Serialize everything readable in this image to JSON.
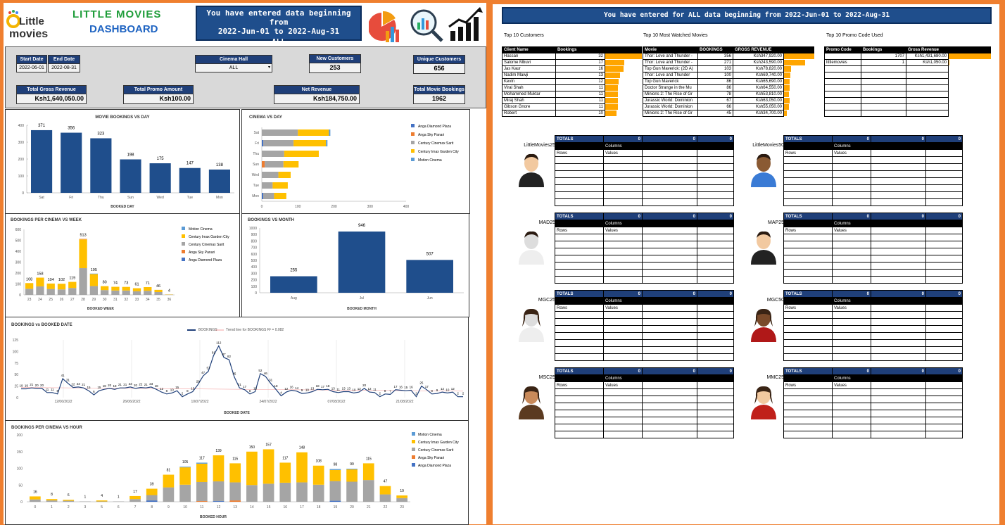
{
  "logo": {
    "word1": "Little",
    "word2": "movies",
    "c_letter": "C"
  },
  "header": {
    "title_line1": "LITTLE MOVIES",
    "title_line2": "DASHBOARD",
    "banner": [
      "You have entered data beginning from",
      "2022-Jun-01 to 2022-Aug-31",
      "ALL"
    ],
    "right_banner": "You have entered for ALL data beginning from 2022-Jun-01 to 2022-Aug-31"
  },
  "filters": {
    "start_date_label": "Start Date",
    "start_date": "2022-06-01",
    "end_date_label": "End Date",
    "end_date": "2022-08-31",
    "cinema_label": "Cinema Hall",
    "cinema_value": "ALL",
    "new_customers_label": "New Customers",
    "new_customers": "253",
    "unique_customers_label": "Unique Customers",
    "unique_customers": "656",
    "gross_label": "Total Gross Revenue",
    "gross": "Ksh1,640,050.00",
    "promo_label": "Total Promo Amount",
    "promo": "Ksh100.00",
    "net_label": "Net Revenue",
    "net": "Ksh184,750.00",
    "bookings_label": "Total Movie Bookings",
    "bookings": "1962"
  },
  "charts": {
    "movie_day": {
      "title": "MOVIE BOOKINGS VS DAY",
      "xlabel": "BOOKED DAY"
    },
    "cinema_day": {
      "title": "CINEMA VS DAY"
    },
    "cinema_week": {
      "title": "BOOKINGS PER CINEMA VS WEEK",
      "xlabel": "BOOKED WEEK"
    },
    "month": {
      "title": "BOOKINGS VS MONTH",
      "xlabel": "BOOKED MONTH"
    },
    "date": {
      "title": "BOOKINGS vs BOOKED DATE",
      "xlabel": "BOOKED DATE",
      "legend1": "BOOKINGS",
      "legend2": "Trend line for BOOKINGS R² = 0.082"
    },
    "hour": {
      "title": "BOOKINGS PER CINEMA VS HOUR",
      "xlabel": "BOOKED HOUR"
    }
  },
  "chart_data": [
    {
      "type": "bar",
      "title": "MOVIE BOOKINGS VS DAY",
      "xlabel": "BOOKED DAY",
      "categories": [
        "Sat",
        "Fri",
        "Thu",
        "Sun",
        "Wed",
        "Tue",
        "Mon"
      ],
      "values": [
        371,
        356,
        323,
        198,
        175,
        147,
        138
      ],
      "ylim": [
        0,
        400
      ],
      "yticks": [
        0,
        100,
        200,
        300,
        400
      ],
      "color": "#1f4e8c"
    },
    {
      "type": "bar",
      "orientation": "horizontal",
      "stacked": true,
      "title": "CINEMA VS DAY",
      "categories": [
        "Sat",
        "Fri",
        "Thu",
        "Sun",
        "Wed",
        "Tue",
        "Mon"
      ],
      "series": [
        {
          "name": "Anga Diamond Plaza",
          "color": "#4472c4",
          "values": [
            0,
            4,
            0,
            0,
            0,
            0,
            4
          ]
        },
        {
          "name": "Anga Sky Panari",
          "color": "#ed7d31",
          "values": [
            0,
            0,
            0,
            8,
            0,
            0,
            0
          ]
        },
        {
          "name": "Century Cinemax Sarit",
          "color": "#a5a5a5",
          "values": [
            100,
            84,
            62,
            52,
            46,
            30,
            30
          ]
        },
        {
          "name": "Century Imax Garden City",
          "color": "#ffc000",
          "values": [
            86,
            90,
            96,
            42,
            34,
            42,
            34
          ]
        },
        {
          "name": "Motion Cinema",
          "color": "#5b9bd5",
          "values": [
            4,
            4,
            0,
            0,
            0,
            0,
            0
          ]
        }
      ],
      "xlim": [
        0,
        400
      ],
      "xticks": [
        0,
        100,
        200,
        300,
        400
      ]
    },
    {
      "type": "bar",
      "stacked": true,
      "title": "BOOKINGS PER CINEMA VS WEEK",
      "xlabel": "BOOKED WEEK",
      "categories": [
        "23",
        "24",
        "25",
        "26",
        "27",
        "28",
        "29",
        "30",
        "31",
        "32",
        "33",
        "34",
        "35",
        "36"
      ],
      "totals": [
        108,
        158,
        104,
        102,
        119,
        513,
        195,
        80,
        74,
        73,
        61,
        71,
        46,
        4
      ],
      "series": [
        {
          "name": "Motion Cinema",
          "color": "#5b9bd5",
          "values": [
            0,
            0,
            0,
            0,
            0,
            0,
            4,
            0,
            0,
            0,
            0,
            0,
            0,
            0
          ]
        },
        {
          "name": "Century Imax Garden City",
          "color": "#ffc000",
          "values": [
            52,
            80,
            50,
            52,
            56,
            263,
            110,
            36,
            34,
            33,
            28,
            34,
            20,
            2
          ]
        },
        {
          "name": "Century Cinemax Sarit",
          "color": "#a5a5a5",
          "values": [
            56,
            78,
            54,
            50,
            63,
            245,
            81,
            44,
            40,
            40,
            33,
            37,
            26,
            2
          ]
        },
        {
          "name": "Anga Sky Panari",
          "color": "#ed7d31",
          "values": [
            0,
            0,
            0,
            0,
            0,
            5,
            0,
            0,
            0,
            0,
            0,
            0,
            0,
            0
          ]
        },
        {
          "name": "Anga Diamond Plaza",
          "color": "#4472c4",
          "values": [
            0,
            0,
            0,
            0,
            0,
            0,
            0,
            0,
            0,
            0,
            0,
            0,
            0,
            0
          ]
        }
      ],
      "ylim": [
        0,
        600
      ],
      "yticks": [
        0,
        100,
        200,
        300,
        400,
        500,
        600
      ]
    },
    {
      "type": "bar",
      "title": "BOOKINGS VS MONTH",
      "xlabel": "BOOKED MONTH",
      "categories": [
        "Aug",
        "Jul",
        "Jun"
      ],
      "values": [
        255,
        946,
        507
      ],
      "ylim": [
        0,
        1000
      ],
      "yticks": [
        0,
        100,
        200,
        300,
        400,
        500,
        600,
        700,
        800,
        900,
        1000
      ],
      "color": "#1f4e8c"
    },
    {
      "type": "line",
      "title": "BOOKINGS vs BOOKED DATE",
      "xlabel": "BOOKED DATE",
      "series_name": "BOOKINGS",
      "values": [
        19,
        19,
        21,
        20,
        20,
        11,
        11,
        8,
        41,
        31,
        22,
        23,
        21,
        15,
        6,
        15,
        18,
        20,
        18,
        21,
        21,
        23,
        20,
        22,
        21,
        23,
        18,
        12,
        8,
        10,
        15,
        2,
        8,
        13,
        28,
        47,
        57,
        91,
        112,
        87,
        82,
        45,
        21,
        17,
        8,
        13,
        52,
        46,
        31,
        18,
        4,
        12,
        16,
        14,
        9,
        10,
        13,
        18,
        17,
        18,
        13,
        11,
        13,
        13,
        10,
        12,
        20,
        12,
        11,
        2,
        8,
        7,
        17,
        16,
        15,
        16,
        2,
        25,
        17,
        8,
        9,
        12,
        10,
        12,
        2,
        2
      ],
      "xtick_labels": [
        "12/06/2022",
        "26/06/2022",
        "10/07/2022",
        "24/07/2022",
        "07/08/2022",
        "21/08/2022"
      ],
      "ylim": [
        0,
        125
      ],
      "yticks": [
        0,
        25,
        50,
        75,
        100,
        125
      ]
    },
    {
      "type": "bar",
      "stacked": true,
      "title": "BOOKINGS PER CINEMA VS HOUR",
      "xlabel": "BOOKED HOUR",
      "categories": [
        "0",
        "1",
        "2",
        "3",
        "5",
        "6",
        "7",
        "8",
        "9",
        "10",
        "11",
        "12",
        "13",
        "14",
        "15",
        "16",
        "17",
        "18",
        "19",
        "20",
        "21",
        "22",
        "23"
      ],
      "totals": [
        16,
        8,
        6,
        1,
        4,
        1,
        17,
        39,
        81,
        105,
        117,
        139,
        115,
        150,
        157,
        117,
        148,
        108,
        98,
        99,
        115,
        47,
        19
      ],
      "series": [
        {
          "name": "Motion Cinema",
          "color": "#5b9bd5",
          "values": [
            0,
            0,
            0,
            0,
            0,
            0,
            0,
            0,
            0,
            2,
            3,
            0,
            0,
            0,
            0,
            0,
            0,
            0,
            3,
            2,
            0,
            0,
            0
          ]
        },
        {
          "name": "Century Imax Garden City",
          "color": "#ffc000",
          "values": [
            9,
            4,
            3,
            0,
            3,
            0,
            9,
            19,
            38,
            52,
            55,
            78,
            57,
            100,
            103,
            60,
            90,
            57,
            33,
            37,
            50,
            25,
            8
          ]
        },
        {
          "name": "Century Cinemax Sarit",
          "color": "#a5a5a5",
          "values": [
            7,
            4,
            3,
            1,
            1,
            1,
            8,
            16,
            43,
            51,
            57,
            59,
            54,
            50,
            54,
            57,
            58,
            51,
            59,
            60,
            65,
            22,
            11
          ]
        },
        {
          "name": "Anga Sky Panari",
          "color": "#ed7d31",
          "values": [
            0,
            0,
            0,
            0,
            0,
            0,
            0,
            0,
            0,
            0,
            2,
            0,
            4,
            0,
            0,
            0,
            0,
            0,
            0,
            0,
            0,
            0,
            0
          ]
        },
        {
          "name": "Anga Diamond Plaza",
          "color": "#4472c4",
          "values": [
            0,
            0,
            0,
            0,
            0,
            0,
            0,
            4,
            0,
            0,
            0,
            2,
            0,
            0,
            0,
            0,
            0,
            0,
            3,
            0,
            0,
            0,
            0
          ]
        }
      ],
      "ylim": [
        0,
        200
      ],
      "yticks": [
        0,
        50,
        100,
        150,
        200
      ]
    }
  ],
  "top_customers": {
    "title": "Top 10 Customers",
    "col1": "Client Name",
    "col2": "Bookings",
    "rows": [
      [
        "Hassan",
        "32"
      ],
      [
        "Salome Mbuvi",
        "17"
      ],
      [
        "Jas Kaur",
        "16"
      ],
      [
        "Nadim Mawji",
        "13"
      ],
      [
        "Kevin",
        "12"
      ],
      [
        "Viral Shah",
        "11"
      ],
      [
        "Mohammed Muktar",
        "11"
      ],
      [
        "Miraj Shah",
        "11"
      ],
      [
        "Gibson Gnore",
        "11"
      ],
      [
        "Robert",
        "10"
      ]
    ],
    "bar_values": [
      32,
      17,
      16,
      13,
      12,
      11,
      11,
      11,
      11,
      10
    ]
  },
  "top_movies": {
    "title": "Top 10 Most Watched Movies",
    "col1": "Movie",
    "col2": "BOOKINGS",
    "col3": "GROSS REVENUE",
    "rows": [
      [
        "Thor: Love and Thunder -",
        "356",
        "Ksh347,920.00"
      ],
      [
        "Thor: Love and Thunder -",
        "271",
        "Ksh243,590.00"
      ],
      [
        "Top Gun Maverick: (2D A)",
        "103",
        "Ksh78,820.00"
      ],
      [
        "Thor: Love and Thunder",
        "100",
        "Ksh69,740.00"
      ],
      [
        "Top Gun Maverick",
        "86",
        "Ksh65,690.00"
      ],
      [
        "Doctor Strange in the Mu",
        "86",
        "Ksh64,550.00"
      ],
      [
        "Minions 2: The Rise of Gr",
        "78",
        "Ksh53,810.00"
      ],
      [
        "Jurassic World: Dominion",
        "67",
        "Ksh63,050.00"
      ],
      [
        "Jurassic World: Dominion",
        "66",
        "Ksh55,050.00"
      ],
      [
        "Minions 2: The Rise of Gr",
        "45",
        "Ksh34,700.00"
      ]
    ],
    "bar_values": [
      347920,
      243590,
      78820,
      69740,
      65690,
      64550,
      53810,
      63050,
      55050,
      34700
    ]
  },
  "top_promo": {
    "title": "Top 10 Promo Code Used",
    "col1": "Promo Code",
    "col2": "Bookings",
    "col3": "Gross Revenue",
    "rows": [
      [
        "",
        "1707",
        "Ksh1,431,680.00"
      ],
      [
        "littlemovies",
        "1",
        "Ksh1,050.00"
      ],
      [
        "",
        "",
        ""
      ],
      [
        "",
        "",
        ""
      ],
      [
        "",
        "",
        ""
      ],
      [
        "",
        "",
        ""
      ],
      [
        "",
        "",
        ""
      ],
      [
        "",
        "",
        ""
      ],
      [
        "",
        "",
        ""
      ],
      [
        "",
        "",
        ""
      ]
    ],
    "bar_values": [
      1431680,
      1050
    ]
  },
  "promo_pivots": [
    {
      "code": "LittleMovies25",
      "avatar": "man-suit"
    },
    {
      "code": "LittleMovies50",
      "avatar": "man-dark"
    },
    {
      "code": "MAD25",
      "avatar": "man-white"
    },
    {
      "code": "MAP25",
      "avatar": "man-suit"
    },
    {
      "code": "MGC25",
      "avatar": "woman-white"
    },
    {
      "code": "MGC50",
      "avatar": "woman-dark"
    },
    {
      "code": "MSC25",
      "avatar": "woman-brown"
    },
    {
      "code": "MMC25",
      "avatar": "woman-red"
    }
  ],
  "pivot_labels": {
    "totals": "TOTALS",
    "zero": "0",
    "columns": "Columns",
    "rows": "Rows",
    "values": "Values"
  },
  "colors": {
    "navy": "#1f4e8c",
    "orange": "#ef7f2f",
    "gold": "#ffc000",
    "grey": "#a5a5a5"
  }
}
